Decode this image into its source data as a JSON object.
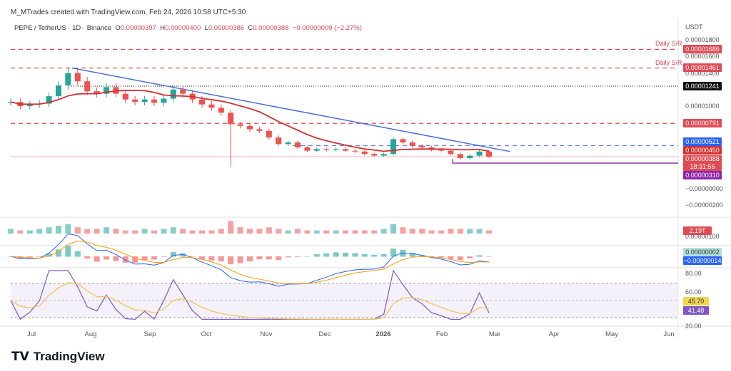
{
  "header": {
    "credit": "M_MTrades created with TradingView.com, Feb 24, 2026 10:58 UTC+5:30",
    "symbol": "PEPE / TetherUS · 1D · Binance",
    "o_label": "O",
    "o": "0.00000397",
    "h_label": "H",
    "h": "0.00000400",
    "l_label": "L",
    "l": "0.00000386",
    "c_label": "C",
    "c": "0.00000388",
    "change": "−0.00000009 (−2.27%)"
  },
  "axis": {
    "currency": "USDT",
    "price_ticks": [
      "0.00001800",
      "0.00001600",
      "0.00001400",
      "0.00001000",
      "−0.00000000",
      "−0.00000200"
    ],
    "volume_tick": "0.00000100",
    "rsi_ticks": [
      "80.00",
      "60.00",
      "20.00"
    ]
  },
  "tags": {
    "sr1": "0.00001686",
    "sr2": "0.00001461",
    "level_black": "0.00001241",
    "level_791": "0.00000791",
    "blue": "0.00000521",
    "ma": "0.00000450",
    "last": "0.00000388",
    "countdown": "18:31:56",
    "purple": "0.00000310",
    "volume": "2.19T",
    "macd_hist": "0.00000002",
    "macd": "−0.00000014",
    "rsi_ma": "45.70",
    "rsi": "41.48"
  },
  "sr_label": "Daily S/R",
  "colors": {
    "up": "#26a69a",
    "down": "#ef5350",
    "ma": "#d32f2f",
    "trend": "#4a6ee0",
    "purple": "#8e24aa",
    "rsi": "#7e57c2",
    "rsi_ma": "#f2c14e"
  },
  "brand": "TradingView",
  "chart_data": {
    "type": "candlestick",
    "title": "PEPE / TetherUS · 1D · Binance",
    "unit": "1e-8 USDT",
    "x_labels": [
      "Jul",
      "Aug",
      "Sep",
      "Oct",
      "Nov",
      "Dec",
      "2026",
      "Feb",
      "Mar",
      "Apr",
      "May",
      "Jun"
    ],
    "dates_step_days": 5,
    "start": "2025-06-20",
    "closes": [
      1050,
      1000,
      1020,
      1030,
      1120,
      1250,
      1400,
      1300,
      1180,
      1150,
      1230,
      1150,
      1080,
      1050,
      1080,
      1040,
      1090,
      1200,
      1150,
      1080,
      1020,
      980,
      920,
      780,
      760,
      720,
      700,
      620,
      540,
      560,
      500,
      460,
      480,
      470,
      480,
      460,
      450,
      420,
      400,
      420,
      600,
      560,
      520,
      500,
      470,
      460,
      420,
      370,
      400,
      450,
      388
    ],
    "volumes": [
      3,
      2,
      2,
      3,
      4,
      5,
      6,
      4,
      3,
      3,
      4,
      3,
      2,
      2,
      3,
      2,
      3,
      4,
      3,
      2,
      2,
      2,
      3,
      8,
      4,
      3,
      3,
      4,
      3,
      2,
      3,
      2,
      2,
      2,
      2,
      2,
      2,
      2,
      2,
      3,
      6,
      4,
      3,
      3,
      2,
      2,
      3,
      3,
      3,
      3,
      2
    ],
    "levels": [
      {
        "value": 1686,
        "label": "Daily S/R"
      },
      {
        "value": 1461,
        "label": "Daily S/R"
      },
      {
        "value": 1241
      },
      {
        "value": 791
      },
      {
        "value": 521
      },
      {
        "value": 310
      }
    ],
    "trendline": [
      {
        "date": "2025-07-22",
        "value": 1461
      },
      {
        "date": "2026-03-08",
        "value": 450
      }
    ],
    "price_ylim": [
      -250,
      1900
    ],
    "rsi_ylim": [
      20,
      90
    ]
  }
}
